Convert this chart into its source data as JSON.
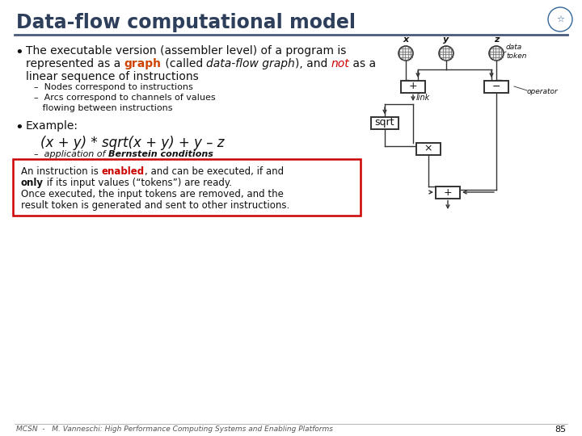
{
  "title": "Data-flow computational model",
  "bg_color": "#ffffff",
  "title_color": "#2E3F5C",
  "red_color": "#cc0000",
  "orange_color": "#cc4400",
  "dark": "#111111",
  "footer_text": "MCSN  -   M. Vanneschi: High Performance Computing Systems and Enabling Platforms",
  "footer_page": "85",
  "line1": "The executable version (assembler level) of a program is",
  "line2a": "represented as a ",
  "line2b": "graph",
  "line2c": " (called ",
  "line2d": "data-flow graph",
  "line2e": "), and ",
  "line2f": "not",
  "line2g": " as a",
  "line3": "linear sequence of instructions",
  "sub1": "–  Nodes correspond to instructions",
  "sub2": "–  Arcs correspond to channels of values",
  "sub3": "   flowing between instructions",
  "ex_label": "Example:",
  "formula": "(x + y) * sqrt(x + y) + y – z",
  "bern_pre": "–  application of ",
  "bern_bold": "Bernstein conditions",
  "box1a": "An instruction is ",
  "box1b": "enabled",
  "box1c": ", and can be executed, if and",
  "box2a": "only",
  "box2b": " if its input values (“tokens”) are ready.",
  "box3": "Once executed, the input tokens are removed, and the",
  "box4": "result token is generated and sent to other instructions."
}
